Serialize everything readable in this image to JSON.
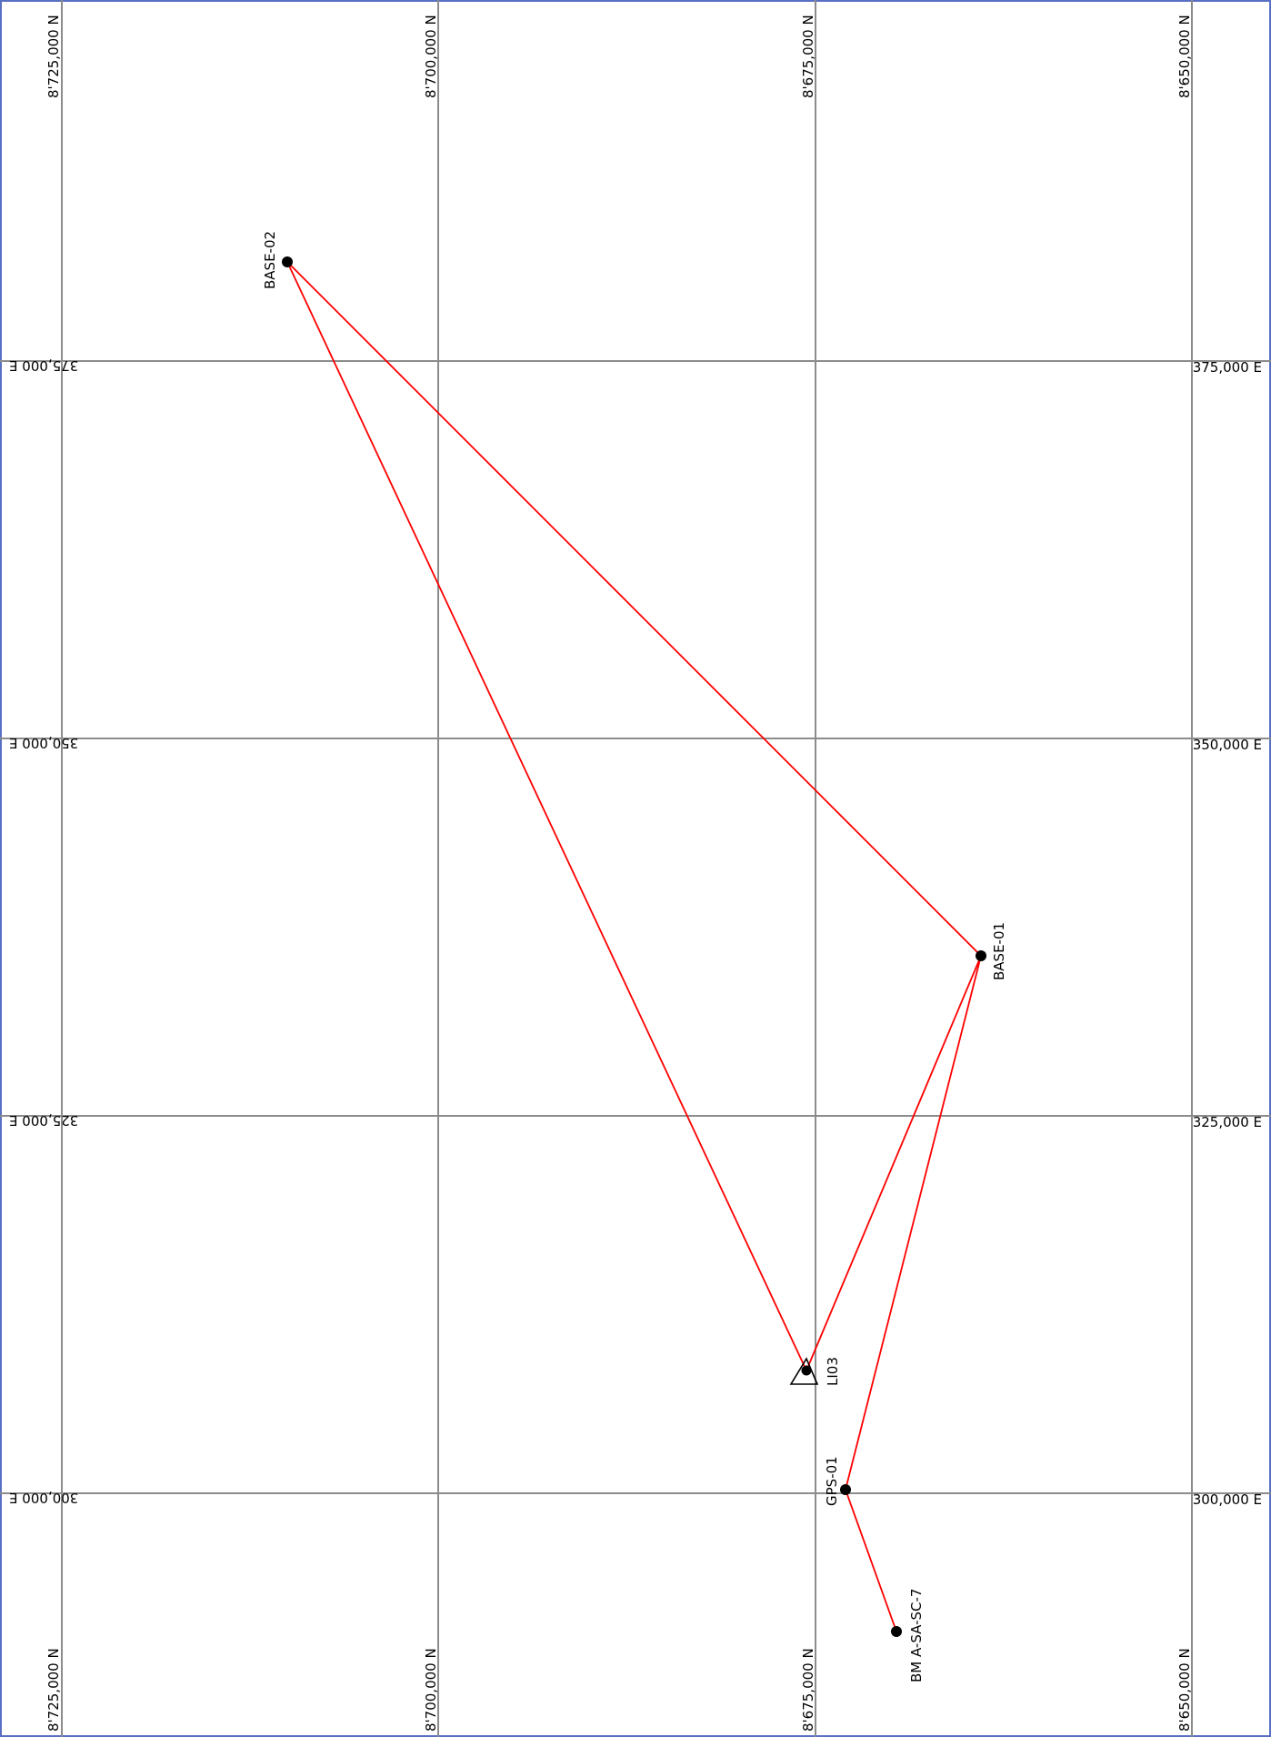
{
  "colors": {
    "frame": "#5a6fc4",
    "grid": "#8c8c8c",
    "network_line": "#ff0000",
    "station": "#000000"
  },
  "grid": {
    "northing_labels": [
      "8'725,000 N",
      "8'700,000 N",
      "8'675,000 N",
      "8'650,000 N"
    ],
    "easting_labels": [
      "375,000 E",
      "350,000 E",
      "325,000 E",
      "300,000 E"
    ]
  },
  "stations": [
    {
      "name": "BASE-02",
      "symbol": "dot"
    },
    {
      "name": "BASE-01",
      "symbol": "dot"
    },
    {
      "name": "LI03",
      "symbol": "triangle"
    },
    {
      "name": "GPS-01",
      "symbol": "dot"
    },
    {
      "name": "BM A-SA-SC-7",
      "symbol": "dot"
    }
  ],
  "connections": [
    [
      "BASE-02",
      "BASE-01"
    ],
    [
      "BASE-02",
      "LI03"
    ],
    [
      "LI03",
      "BASE-01"
    ],
    [
      "BASE-01",
      "GPS-01"
    ],
    [
      "GPS-01",
      "BM A-SA-SC-7"
    ]
  ]
}
